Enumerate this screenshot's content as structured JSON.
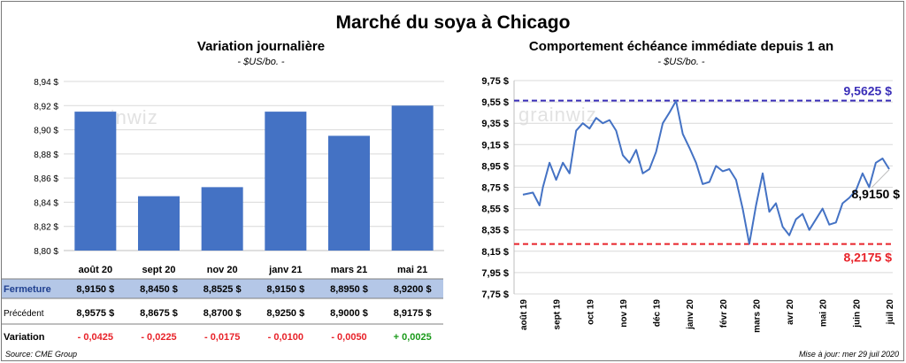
{
  "page": {
    "title": "Marché du soya à Chicago",
    "source": "Source: CME Group",
    "updated": "Mise à jour: mer 29 juil 2020",
    "watermark": "grainwiz"
  },
  "colors": {
    "bar": "#4472c4",
    "line": "#4472c4",
    "high": "#3a2eb8",
    "low": "#e8232a",
    "negative": "#e8232a",
    "positive": "#1a9a1a",
    "row_highlight": "#b4c7e7"
  },
  "chart_data": [
    {
      "type": "bar",
      "title": "Variation journalière",
      "subtitle": "- $US/bo. -",
      "categories": [
        "août 20",
        "sept 20",
        "nov 20",
        "janv 21",
        "mars 21",
        "mai 21"
      ],
      "values": [
        8.915,
        8.845,
        8.8525,
        8.915,
        8.895,
        8.92
      ],
      "ylim": [
        8.8,
        8.94
      ],
      "yticks": [
        "8,80 $",
        "8,82 $",
        "8,84 $",
        "8,86 $",
        "8,88 $",
        "8,90 $",
        "8,92 $",
        "8,94 $"
      ],
      "grid": true,
      "table": {
        "rows": [
          {
            "label": "Fermeture",
            "cells": [
              "8,9150  $",
              "8,8450  $",
              "8,8525  $",
              "8,9150  $",
              "8,8950  $",
              "8,9200  $"
            ]
          },
          {
            "label": "Précédent",
            "cells": [
              "8,9575  $",
              "8,8675  $",
              "8,8700  $",
              "8,9250  $",
              "8,9000  $",
              "8,9175  $"
            ]
          },
          {
            "label": "Variation",
            "cells": [
              "- 0,0425",
              "- 0,0225",
              "- 0,0175",
              "- 0,0100",
              "- 0,0050",
              "+ 0,0025"
            ],
            "signs": [
              -1,
              -1,
              -1,
              -1,
              -1,
              1
            ]
          }
        ]
      }
    },
    {
      "type": "line",
      "title": "Comportement  échéance immédiate depuis 1 an",
      "subtitle": "- $US/bo. -",
      "xticks": [
        "août 19",
        "sept 19",
        "oct 19",
        "nov 19",
        "déc 19",
        "janv 20",
        "févr 20",
        "mars 20",
        "avr 20",
        "mai 20",
        "juin 20",
        "juil 20"
      ],
      "ylim": [
        7.75,
        9.75
      ],
      "yticks": [
        "7,75 $",
        "7,95 $",
        "8,15 $",
        "8,35 $",
        "8,55 $",
        "8,75 $",
        "8,95 $",
        "9,15 $",
        "9,35 $",
        "9,55 $",
        "9,75 $"
      ],
      "grid": true,
      "high": {
        "value": 9.5625,
        "label": "9,5625  $"
      },
      "low": {
        "value": 8.2175,
        "label": "8,2175  $"
      },
      "last": {
        "value": 8.915,
        "label": "8,9150 $"
      },
      "x": [
        0.0,
        0.3,
        0.5,
        0.6,
        0.8,
        1.0,
        1.2,
        1.4,
        1.6,
        1.8,
        2.0,
        2.2,
        2.4,
        2.6,
        2.8,
        3.0,
        3.2,
        3.4,
        3.6,
        3.8,
        4.0,
        4.2,
        4.4,
        4.6,
        4.8,
        5.0,
        5.2,
        5.4,
        5.6,
        5.8,
        6.0,
        6.2,
        6.4,
        6.6,
        6.8,
        7.0,
        7.2,
        7.4,
        7.6,
        7.8,
        8.0,
        8.2,
        8.4,
        8.6,
        8.8,
        9.0,
        9.2,
        9.4,
        9.6,
        9.8,
        10.0,
        10.2,
        10.4,
        10.6,
        10.8,
        11.0
      ],
      "y": [
        8.68,
        8.7,
        8.58,
        8.75,
        8.98,
        8.82,
        8.98,
        8.88,
        9.28,
        9.35,
        9.3,
        9.4,
        9.35,
        9.38,
        9.28,
        9.05,
        8.98,
        9.1,
        8.88,
        8.92,
        9.08,
        9.35,
        9.45,
        9.56,
        9.25,
        9.12,
        8.98,
        8.78,
        8.8,
        8.95,
        8.9,
        8.92,
        8.82,
        8.55,
        8.22,
        8.58,
        8.88,
        8.52,
        8.6,
        8.38,
        8.3,
        8.45,
        8.5,
        8.35,
        8.45,
        8.55,
        8.4,
        8.42,
        8.6,
        8.65,
        8.72,
        8.88,
        8.75,
        8.98,
        9.02,
        8.92
      ]
    }
  ]
}
